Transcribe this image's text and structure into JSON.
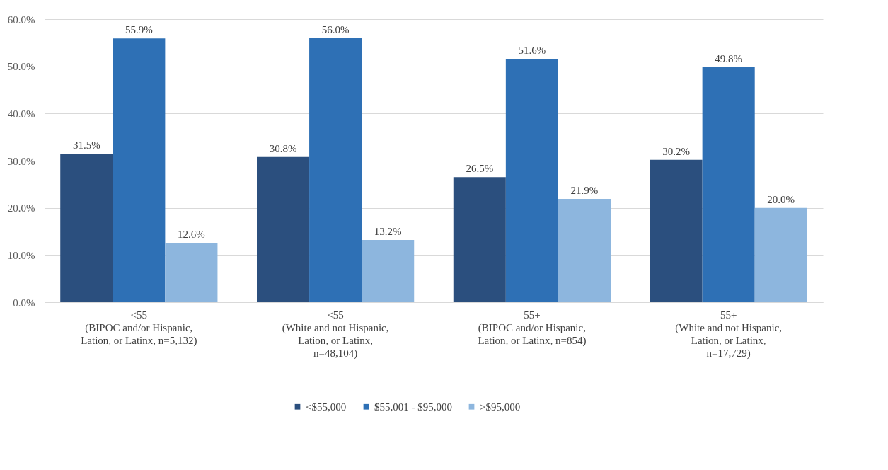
{
  "chart_data": {
    "type": "bar",
    "categories": [
      "<55 (BIPOC and/or Hispanic, Lation, or Latinx, n=5,132)",
      "<55 (White and not Hispanic, Lation, or Latinx, n=48,104)",
      "55+ (BIPOC and/or Hispanic, Lation, or Latinx, n=854)",
      "55+ (White and not Hispanic, Lation, or Latinx, n=17,729)"
    ],
    "series": [
      {
        "name": "<$55,000",
        "color": "#2b4f7e",
        "values": [
          31.5,
          30.8,
          26.5,
          30.2
        ],
        "value_labels": [
          "31.5%",
          "30.8%",
          "26.5%",
          "30.2%"
        ]
      },
      {
        "name": "$55,001 - $95,000",
        "color": "#2e70b5",
        "values": [
          55.9,
          56.0,
          51.6,
          49.8
        ],
        "value_labels": [
          "55.9%",
          "56.0%",
          "51.6%",
          "49.8%"
        ]
      },
      {
        "name": ">$95,000",
        "color": "#8db6de",
        "values": [
          12.6,
          13.2,
          21.9,
          20.0
        ],
        "value_labels": [
          "12.6%",
          "13.2%",
          "21.9%",
          "20.0%"
        ]
      }
    ],
    "ylim": [
      0,
      60
    ],
    "yticks": [
      {
        "value": 0,
        "label": "0.0%"
      },
      {
        "value": 10,
        "label": "10.0%"
      },
      {
        "value": 20,
        "label": "20.0%"
      },
      {
        "value": 30,
        "label": "30.0%"
      },
      {
        "value": 40,
        "label": "40.0%"
      },
      {
        "value": 50,
        "label": "50.0%"
      },
      {
        "value": 60,
        "label": "60.0%"
      }
    ],
    "grid": "y",
    "legend": "bottom"
  }
}
